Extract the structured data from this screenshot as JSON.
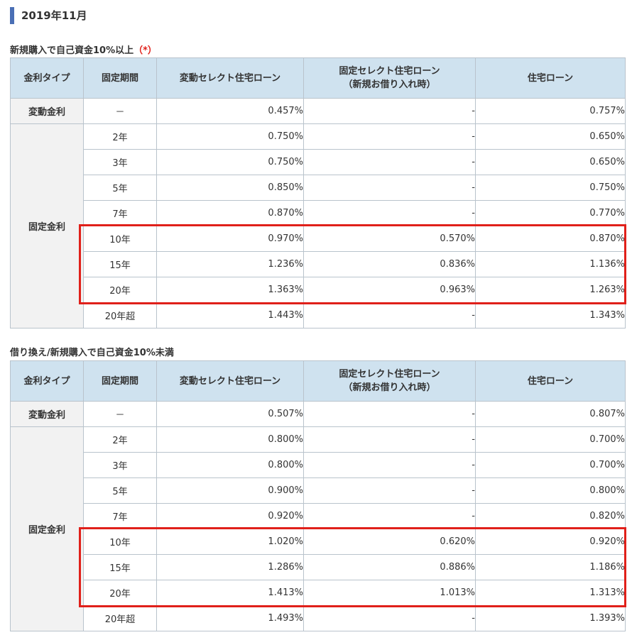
{
  "page_title": "2019年11月",
  "headers": {
    "type": "金利タイプ",
    "period": "固定期間",
    "hensel": "変動セレクト住宅ローン",
    "fixsel_line1": "固定セレクト住宅ローン",
    "fixsel_line2": "（新規お借り入れ時）",
    "loan": "住宅ローン"
  },
  "labels": {
    "variable": "変動金利",
    "fixed": "固定金利"
  },
  "section1": {
    "caption": "新規購入で自己資金10%以上",
    "caption_mark": "（*）",
    "variable_row": {
      "period": "－",
      "hensel": "0.457%",
      "fixsel": "-",
      "loan": "0.757%"
    },
    "fixed_rows": [
      {
        "period": "2年",
        "hensel": "0.750%",
        "fixsel": "-",
        "loan": "0.650%"
      },
      {
        "period": "3年",
        "hensel": "0.750%",
        "fixsel": "-",
        "loan": "0.650%"
      },
      {
        "period": "5年",
        "hensel": "0.850%",
        "fixsel": "-",
        "loan": "0.750%"
      },
      {
        "period": "7年",
        "hensel": "0.870%",
        "fixsel": "-",
        "loan": "0.770%"
      },
      {
        "period": "10年",
        "hensel": "0.970%",
        "fixsel": "0.570%",
        "loan": "0.870%"
      },
      {
        "period": "15年",
        "hensel": "1.236%",
        "fixsel": "0.836%",
        "loan": "1.136%"
      },
      {
        "period": "20年",
        "hensel": "1.363%",
        "fixsel": "0.963%",
        "loan": "1.263%"
      },
      {
        "period": "20年超",
        "hensel": "1.443%",
        "fixsel": "-",
        "loan": "1.343%"
      }
    ]
  },
  "section2": {
    "caption": "借り換え/新規購入で自己資金10%未満",
    "variable_row": {
      "period": "－",
      "hensel": "0.507%",
      "fixsel": "-",
      "loan": "0.807%"
    },
    "fixed_rows": [
      {
        "period": "2年",
        "hensel": "0.800%",
        "fixsel": "-",
        "loan": "0.700%"
      },
      {
        "period": "3年",
        "hensel": "0.800%",
        "fixsel": "-",
        "loan": "0.700%"
      },
      {
        "period": "5年",
        "hensel": "0.900%",
        "fixsel": "-",
        "loan": "0.800%"
      },
      {
        "period": "7年",
        "hensel": "0.920%",
        "fixsel": "-",
        "loan": "0.820%"
      },
      {
        "period": "10年",
        "hensel": "1.020%",
        "fixsel": "0.620%",
        "loan": "0.920%"
      },
      {
        "period": "15年",
        "hensel": "1.286%",
        "fixsel": "0.886%",
        "loan": "1.186%"
      },
      {
        "period": "20年",
        "hensel": "1.413%",
        "fixsel": "1.013%",
        "loan": "1.313%"
      },
      {
        "period": "20年超",
        "hensel": "1.493%",
        "fixsel": "-",
        "loan": "1.393%"
      }
    ]
  },
  "colors": {
    "accent_bar": "#4a6fb5",
    "header_bg": "#cfe2ef",
    "highlight": "#e0201a"
  }
}
